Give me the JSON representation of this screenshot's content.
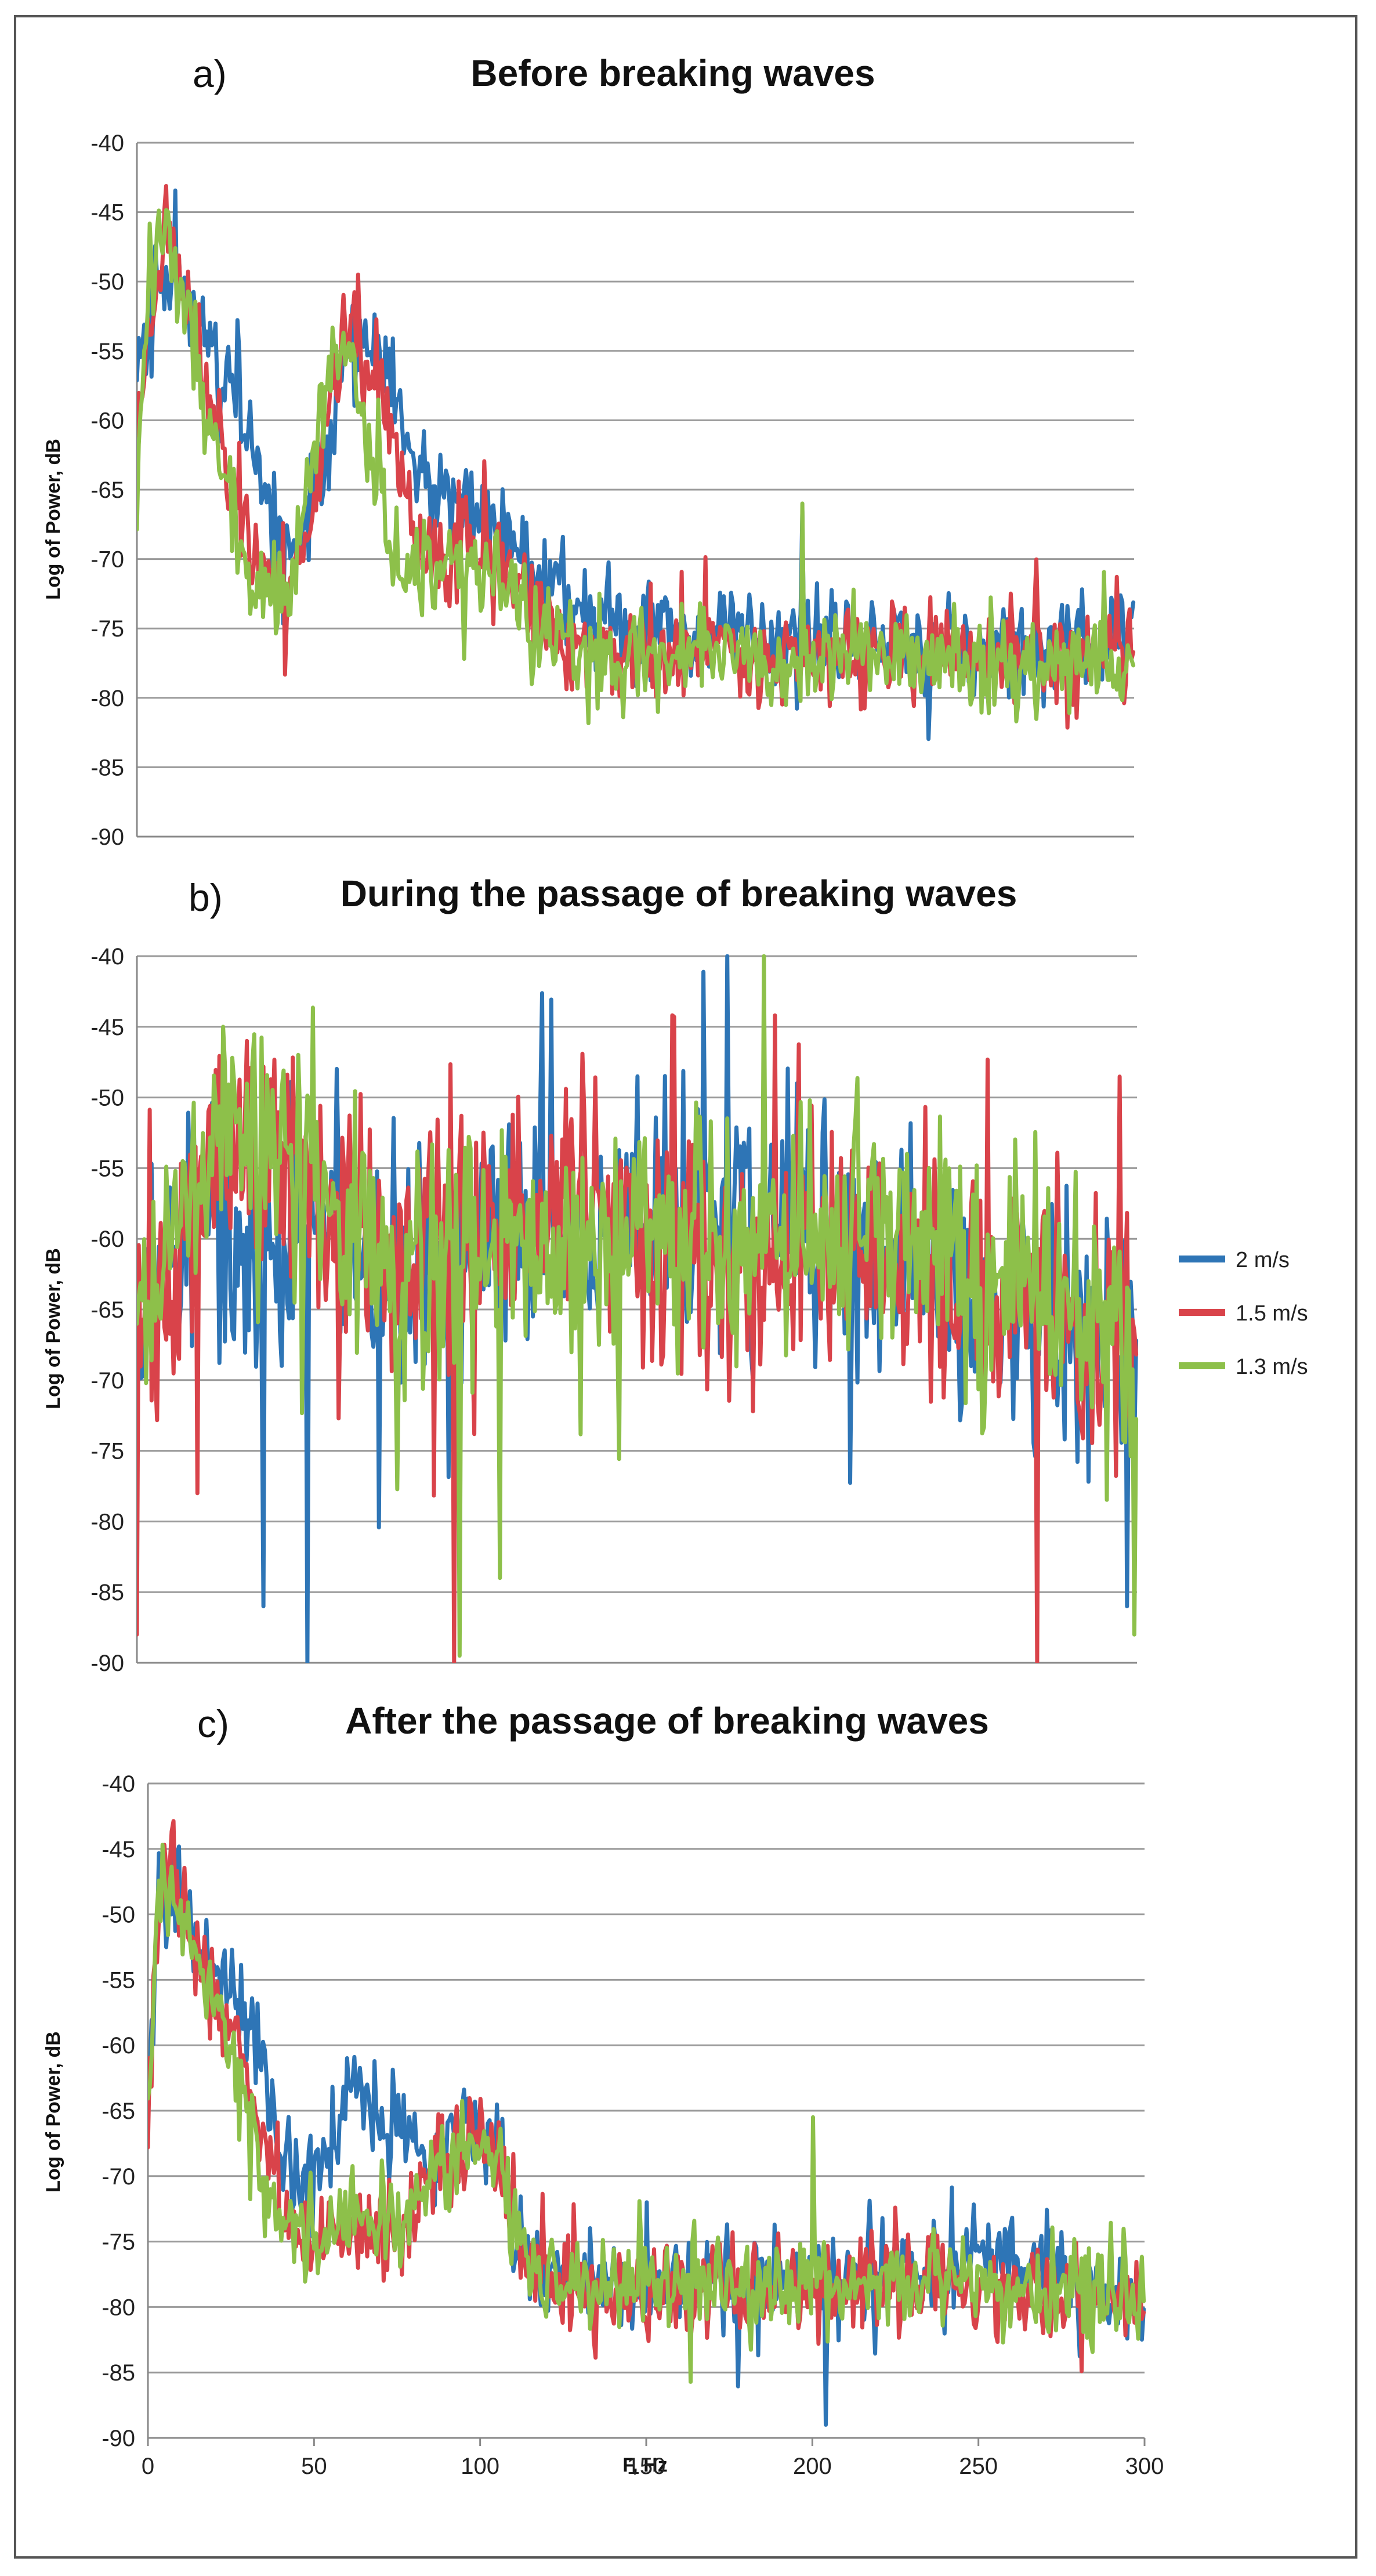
{
  "figure": {
    "colors": {
      "blue": "#2E75B6",
      "red": "#D9434A",
      "green": "#8DC04A",
      "grid": "#9A9A9A",
      "axis": "#888888"
    },
    "legend": [
      {
        "name": "2 m/s",
        "color": "#2E75B6"
      },
      {
        "name": "1.5 m/s",
        "color": "#D9434A"
      },
      {
        "name": "1.3 m/s",
        "color": "#8DC04A"
      }
    ],
    "xlabel": "F, Hz"
  },
  "chart_data": [
    {
      "type": "line",
      "letter": "a)",
      "title": "Before breaking waves",
      "ylabel": "Log of Power, dB",
      "xlim": [
        0,
        300
      ],
      "ylim": [
        -90,
        -40
      ],
      "yticks": [
        "-40",
        "-45",
        "-50",
        "-55",
        "-60",
        "-65",
        "-70",
        "-75",
        "-80",
        "-85",
        "-90"
      ],
      "xticks": [],
      "series": [
        {
          "name": "2 m/s",
          "color": "#2E75B6",
          "noise": 2.4,
          "seed": 11,
          "x": [
            0,
            5,
            8,
            12,
            16,
            20,
            25,
            30,
            35,
            40,
            45,
            50,
            55,
            60,
            65,
            70,
            75,
            80,
            85,
            90,
            95,
            100,
            110,
            120,
            130,
            150,
            170,
            200,
            230,
            260,
            300
          ],
          "y": [
            -55,
            -51,
            -48,
            -50,
            -51,
            -53,
            -56,
            -59,
            -63,
            -67,
            -69,
            -69,
            -64,
            -58,
            -54,
            -55,
            -57,
            -61,
            -64,
            -66,
            -66,
            -66,
            -68,
            -71,
            -73,
            -75,
            -75,
            -76,
            -76,
            -77,
            -76
          ]
        },
        {
          "name": "1.5 m/s",
          "color": "#D9434A",
          "noise": 2.4,
          "seed": 23,
          "x": [
            0,
            5,
            8,
            12,
            16,
            20,
            25,
            30,
            35,
            40,
            45,
            50,
            55,
            60,
            65,
            70,
            75,
            80,
            85,
            90,
            95,
            100,
            110,
            120,
            130,
            150,
            170,
            200,
            230,
            260,
            300
          ],
          "y": [
            -60,
            -51,
            -47,
            -49,
            -52,
            -56,
            -61,
            -65,
            -70,
            -71,
            -72,
            -70,
            -62,
            -56,
            -54,
            -56,
            -60,
            -65,
            -69,
            -71,
            -71,
            -69,
            -71,
            -74,
            -76,
            -77,
            -76,
            -77,
            -77,
            -77,
            -77
          ]
        },
        {
          "name": "1.3 m/s",
          "color": "#8DC04A",
          "noise": 2.4,
          "seed": 37,
          "x": [
            0,
            5,
            8,
            12,
            16,
            20,
            25,
            30,
            35,
            40,
            45,
            50,
            55,
            60,
            65,
            70,
            75,
            80,
            85,
            90,
            95,
            100,
            110,
            120,
            130,
            150,
            170,
            200,
            230,
            260,
            300
          ],
          "y": [
            -62,
            -48,
            -46,
            -50,
            -53,
            -58,
            -63,
            -68,
            -72,
            -72,
            -73,
            -68,
            -60,
            -55,
            -56,
            -61,
            -67,
            -71,
            -72,
            -72,
            -71,
            -70,
            -72,
            -75,
            -77,
            -77,
            -76,
            -77,
            -77,
            -78,
            -77
          ]
        }
      ],
      "spikes": [
        {
          "series": 2,
          "x": 200,
          "y": -66
        },
        {
          "series": 0,
          "x": 200,
          "y": -66.5
        }
      ]
    },
    {
      "type": "line",
      "letter": "b)",
      "title": "During the passage of breaking waves",
      "ylabel": "Log of Power, dB",
      "xlim": [
        0,
        300
      ],
      "ylim": [
        -90,
        -40
      ],
      "yticks": [
        "-40",
        "-45",
        "-50",
        "-55",
        "-60",
        "-65",
        "-70",
        "-75",
        "-80",
        "-85",
        "-90"
      ],
      "xticks": [],
      "series": [
        {
          "name": "2 m/s",
          "color": "#2E75B6",
          "noise": 6.0,
          "seed": 53,
          "x": [
            0,
            20,
            40,
            60,
            80,
            100,
            120,
            140,
            160,
            180,
            200,
            220,
            240,
            260,
            280,
            300
          ],
          "y": [
            -63,
            -59,
            -61,
            -60,
            -62,
            -61,
            -60,
            -59,
            -58,
            -58,
            -59,
            -62,
            -62,
            -65,
            -66,
            -66
          ]
        },
        {
          "name": "1.5 m/s",
          "color": "#D9434A",
          "noise": 6.0,
          "seed": 71,
          "x": [
            0,
            20,
            40,
            60,
            80,
            100,
            120,
            140,
            160,
            180,
            200,
            220,
            240,
            260,
            280,
            300
          ],
          "y": [
            -68,
            -56,
            -53,
            -59,
            -61,
            -59,
            -59,
            -59,
            -60,
            -60,
            -59,
            -63,
            -63,
            -65,
            -66,
            -68
          ]
        },
        {
          "name": "1.3 m/s",
          "color": "#8DC04A",
          "noise": 6.0,
          "seed": 89,
          "x": [
            0,
            20,
            40,
            60,
            80,
            100,
            120,
            140,
            160,
            180,
            200,
            220,
            240,
            260,
            280,
            300
          ],
          "y": [
            -65,
            -55,
            -52,
            -59,
            -63,
            -61,
            -61,
            -60,
            -60,
            -59,
            -59,
            -60,
            -61,
            -63,
            -65,
            -68
          ]
        }
      ],
      "spikes": [
        {
          "series": 0,
          "x": 38,
          "y": -86
        },
        {
          "series": 0,
          "x": 51,
          "y": -90
        },
        {
          "series": 0,
          "x": 150,
          "y": -48.5
        },
        {
          "series": 0,
          "x": 198,
          "y": -49
        },
        {
          "series": 0,
          "x": 297,
          "y": -86
        },
        {
          "series": 1,
          "x": 0,
          "y": -88
        },
        {
          "series": 1,
          "x": 33,
          "y": -46
        },
        {
          "series": 1,
          "x": 95,
          "y": -90
        },
        {
          "series": 1,
          "x": 270,
          "y": -90
        },
        {
          "series": 1,
          "x": 18,
          "y": -78
        },
        {
          "series": 2,
          "x": 26,
          "y": -45
        },
        {
          "series": 2,
          "x": 97,
          "y": -89.5
        },
        {
          "series": 2,
          "x": 299,
          "y": -88
        },
        {
          "series": 2,
          "x": 109,
          "y": -84
        }
      ]
    },
    {
      "type": "line",
      "letter": "c)",
      "title": "After the passage of breaking waves",
      "ylabel": "Log of Power, dB",
      "xlabel": "F, Hz",
      "xlim": [
        0,
        300
      ],
      "ylim": [
        -90,
        -40
      ],
      "yticks": [
        "-40",
        "-45",
        "-50",
        "-55",
        "-60",
        "-65",
        "-70",
        "-75",
        "-80",
        "-85",
        "-90"
      ],
      "xticks": [
        "0",
        "50",
        "100",
        "150",
        "200",
        "250",
        "300"
      ],
      "series": [
        {
          "name": "2 m/s",
          "color": "#2E75B6",
          "noise": 2.4,
          "seed": 101,
          "x": [
            0,
            3,
            7,
            12,
            18,
            24,
            30,
            35,
            40,
            45,
            50,
            55,
            60,
            65,
            70,
            75,
            80,
            85,
            90,
            95,
            100,
            105,
            110,
            115,
            130,
            150,
            200,
            250,
            280,
            300
          ],
          "y": [
            -66,
            -48,
            -47,
            -51,
            -54,
            -56,
            -57,
            -62,
            -69,
            -71,
            -70,
            -68,
            -63,
            -64,
            -65,
            -66,
            -67,
            -70,
            -68,
            -66,
            -66,
            -67,
            -74,
            -77,
            -78,
            -78,
            -78,
            -76,
            -78,
            -80
          ]
        },
        {
          "name": "1.5 m/s",
          "color": "#D9434A",
          "noise": 2.4,
          "seed": 131,
          "x": [
            0,
            3,
            7,
            12,
            18,
            24,
            30,
            35,
            40,
            45,
            50,
            55,
            60,
            65,
            70,
            75,
            80,
            85,
            90,
            95,
            100,
            105,
            110,
            115,
            130,
            150,
            200,
            250,
            280,
            300
          ],
          "y": [
            -66,
            -49,
            -46,
            -51,
            -55,
            -58,
            -62,
            -67,
            -73,
            -75,
            -75,
            -74,
            -74,
            -74,
            -74,
            -74,
            -73,
            -71,
            -69,
            -67,
            -67,
            -68,
            -74,
            -77,
            -79,
            -79,
            -79,
            -78,
            -79,
            -80
          ]
        },
        {
          "name": "1.3 m/s",
          "color": "#8DC04A",
          "noise": 2.4,
          "seed": 151,
          "x": [
            0,
            3,
            7,
            12,
            18,
            24,
            30,
            35,
            40,
            45,
            50,
            55,
            60,
            65,
            70,
            75,
            80,
            85,
            90,
            95,
            100,
            105,
            110,
            115,
            130,
            150,
            200,
            250,
            280,
            300
          ],
          "y": [
            -64,
            -50,
            -47,
            -52,
            -56,
            -60,
            -65,
            -71,
            -74,
            -75,
            -74,
            -73,
            -73,
            -73,
            -73,
            -73,
            -72,
            -70,
            -69,
            -68,
            -67,
            -68,
            -73,
            -77,
            -78,
            -78,
            -78,
            -78,
            -79,
            -80
          ]
        }
      ],
      "spikes": [
        {
          "series": 2,
          "x": 200,
          "y": -65.5
        },
        {
          "series": 0,
          "x": 150,
          "y": -72
        },
        {
          "series": 0,
          "x": 204,
          "y": -89
        }
      ]
    }
  ]
}
